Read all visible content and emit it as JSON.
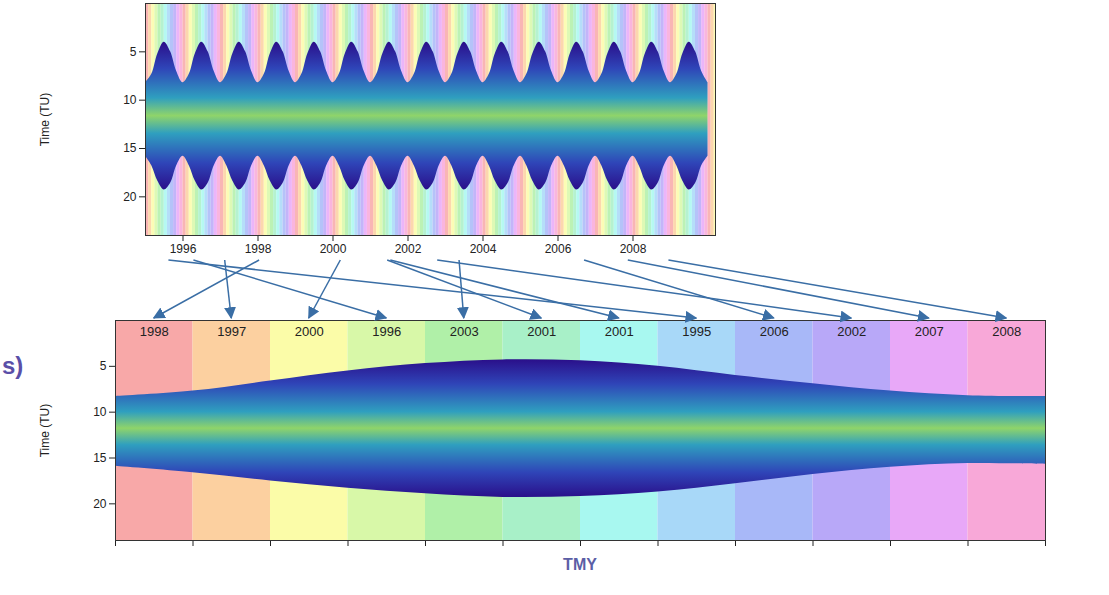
{
  "chart_data": [
    {
      "type": "area",
      "ylabel": "Time (TU)",
      "xlim": [
        1995,
        2010.2
      ],
      "xticks": [
        1996,
        1998,
        2000,
        2002,
        2004,
        2006,
        2008
      ],
      "ylim": [
        24,
        0
      ],
      "yticks": [
        5,
        10,
        15,
        20
      ],
      "colors": [
        "#f8a8a8",
        "#fcd0a0",
        "#fbfca8",
        "#d8f8a8",
        "#b0f0a8",
        "#a8f0c8",
        "#a8f8f0",
        "#a8d8f8",
        "#a8b8f8",
        "#b8a8f8",
        "#e8a8f8",
        "#f8a8d8"
      ],
      "series": [
        {
          "color": "#2a0f8a",
          "x": [
            1995,
            1995.17,
            1995.33,
            1995.5,
            1995.67,
            1995.83,
            1996,
            1996.17,
            1996.33,
            1996.5,
            1996.67,
            1996.83,
            1997,
            1997.17,
            1997.33,
            1997.5,
            1997.67,
            1997.83,
            1998,
            1998.17,
            1998.33,
            1998.5,
            1998.67,
            1998.83,
            1999,
            1999.17,
            1999.33,
            1999.5,
            1999.67,
            1999.83,
            2000,
            2000.17,
            2000.33,
            2000.5,
            2000.67,
            2000.83,
            2001,
            2001.17,
            2001.33,
            2001.5,
            2001.67,
            2001.83,
            2002,
            2002.17,
            2002.33,
            2002.5,
            2002.67,
            2002.83,
            2003,
            2003.17,
            2003.33,
            2003.5,
            2003.67,
            2003.83,
            2004,
            2004.17,
            2004.33,
            2004.5,
            2004.67,
            2004.83,
            2005,
            2005.17,
            2005.33,
            2005.5,
            2005.67,
            2005.83,
            2006,
            2006.17,
            2006.33,
            2006.5,
            2006.67,
            2006.83,
            2007,
            2007.17,
            2007.33,
            2007.5,
            2007.67,
            2007.83,
            2008,
            2008.17,
            2008.33,
            2008.5,
            2008.67,
            2008.83,
            2009,
            2009.17,
            2009.33,
            2009.5,
            2009.67,
            2009.83,
            2010
          ],
          "low": [
            8.2,
            7.3,
            5.2,
            4.0,
            5.0,
            7.0,
            8.2,
            7.3,
            5.2,
            4.0,
            5.0,
            7.0,
            8.2,
            7.3,
            5.2,
            4.0,
            5.0,
            7.0,
            8.2,
            7.3,
            5.2,
            4.0,
            5.0,
            7.0,
            8.2,
            7.3,
            5.2,
            4.0,
            5.0,
            7.0,
            8.2,
            7.3,
            5.2,
            4.0,
            5.0,
            7.0,
            8.2,
            7.3,
            5.2,
            4.0,
            5.0,
            7.0,
            8.2,
            7.3,
            5.2,
            4.0,
            5.0,
            7.0,
            8.2,
            7.3,
            5.2,
            4.0,
            5.0,
            7.0,
            8.2,
            7.3,
            5.2,
            4.0,
            5.0,
            7.0,
            8.2,
            7.3,
            5.2,
            4.0,
            5.0,
            7.0,
            8.2,
            7.3,
            5.2,
            4.0,
            5.0,
            7.0,
            8.2,
            7.3,
            5.2,
            4.0,
            5.0,
            7.0,
            8.2,
            7.3,
            5.2,
            4.0,
            5.0,
            7.0,
            8.2,
            7.3,
            5.2,
            4.0,
            5.0,
            7.0,
            8.2
          ],
          "high": [
            15.8,
            16.8,
            18.4,
            19.3,
            18.6,
            16.8,
            15.8,
            16.8,
            18.4,
            19.3,
            18.6,
            16.8,
            15.8,
            16.8,
            18.4,
            19.3,
            18.6,
            16.8,
            15.8,
            16.8,
            18.4,
            19.3,
            18.6,
            16.8,
            15.8,
            16.8,
            18.4,
            19.3,
            18.6,
            16.8,
            15.8,
            16.8,
            18.4,
            19.3,
            18.6,
            16.8,
            15.8,
            16.8,
            18.4,
            19.3,
            18.6,
            16.8,
            15.8,
            16.8,
            18.4,
            19.3,
            18.6,
            16.8,
            15.8,
            16.8,
            18.4,
            19.3,
            18.6,
            16.8,
            15.8,
            16.8,
            18.4,
            19.3,
            18.6,
            16.8,
            15.8,
            16.8,
            18.4,
            19.3,
            18.6,
            16.8,
            15.8,
            16.8,
            18.4,
            19.3,
            18.6,
            16.8,
            15.8,
            16.8,
            18.4,
            19.3,
            18.6,
            16.8,
            15.8,
            16.8,
            18.4,
            19.3,
            18.6,
            16.8,
            15.8,
            16.8,
            18.4,
            19.3,
            18.6,
            16.8,
            15.8
          ]
        }
      ]
    },
    {
      "type": "area",
      "xlabel": "TMY",
      "ylabel": "Time (TU)",
      "categories": [
        "1998",
        "1997",
        "2000",
        "1996",
        "2003",
        "2001",
        "2001",
        "1995",
        "2006",
        "2002",
        "2007",
        "2008"
      ],
      "xlim": [
        0,
        12
      ],
      "xticks": [
        0,
        1,
        2,
        3,
        4,
        5,
        6,
        7,
        8,
        9,
        10,
        11,
        12
      ],
      "ylim": [
        24,
        0
      ],
      "yticks": [
        5,
        10,
        15,
        20
      ],
      "tick_labels": "y",
      "colors": [
        "#f8a8a8",
        "#fcd0a0",
        "#fbfca8",
        "#d8f8a8",
        "#b0f0a8",
        "#a8f0c8",
        "#a8f8f0",
        "#a8d8f8",
        "#a8b8f8",
        "#b8a8f8",
        "#e8a8f8",
        "#f8a8d8"
      ],
      "series": [
        {
          "color": "#2a0f8a",
          "x": [
            0,
            1,
            2,
            3,
            4,
            5,
            6,
            7,
            8,
            9,
            10,
            11,
            12
          ],
          "low": [
            8.3,
            7.7,
            6.6,
            5.5,
            4.7,
            4.3,
            4.4,
            5.0,
            6.0,
            6.9,
            7.7,
            8.2,
            8.3
          ],
          "high": [
            15.9,
            16.6,
            17.5,
            18.3,
            18.9,
            19.3,
            19.2,
            18.7,
            17.8,
            16.8,
            16.0,
            15.6,
            15.7
          ]
        }
      ]
    }
  ],
  "panel_label": "s)"
}
